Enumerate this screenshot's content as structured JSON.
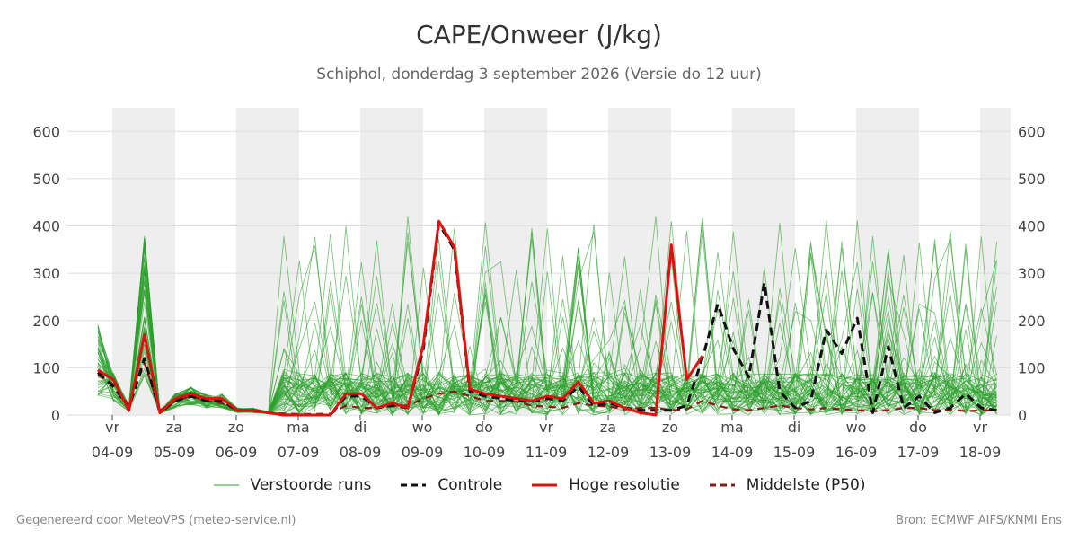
{
  "header": {
    "title": "CAPE/Onweer (J/kg)",
    "subtitle": "Schiphol, donderdag  3 september 2026 (Versie do 12 uur)"
  },
  "footer": {
    "left": "Gegenereerd door MeteoVPS (meteo-service.nl)",
    "right": "Bron: ECMWF AIFS/KNMI Ens"
  },
  "colors": {
    "ensemble": "#2ca02c",
    "control": "#111111",
    "highres": "#e01010",
    "median": "#8b1a1a",
    "weekend_band": "#eeeeee",
    "grid": "#dddddd"
  },
  "legend": [
    {
      "label": "Verstoorde runs",
      "key": "ensemble",
      "style": "thin"
    },
    {
      "label": "Controle",
      "key": "control",
      "style": "dashed"
    },
    {
      "label": "Hoge resolutie",
      "key": "highres",
      "style": "solid"
    },
    {
      "label": "Middelste (P50)",
      "key": "median",
      "style": "dashed"
    }
  ],
  "chart_data": {
    "type": "line",
    "ylim": [
      0,
      650
    ],
    "yticks": [
      0,
      100,
      200,
      300,
      400,
      500,
      600
    ],
    "x_start": "2026-09-03",
    "x_end": "2026-09-18",
    "day_ticks": [
      {
        "day": "vr",
        "date": "04-09"
      },
      {
        "day": "za",
        "date": "05-09"
      },
      {
        "day": "zo",
        "date": "06-09"
      },
      {
        "day": "ma",
        "date": "07-09"
      },
      {
        "day": "di",
        "date": "08-09"
      },
      {
        "day": "wo",
        "date": "09-09"
      },
      {
        "day": "do",
        "date": "10-09"
      },
      {
        "day": "vr",
        "date": "11-09"
      },
      {
        "day": "za",
        "date": "12-09"
      },
      {
        "day": "zo",
        "date": "13-09"
      },
      {
        "day": "ma",
        "date": "14-09"
      },
      {
        "day": "di",
        "date": "15-09"
      },
      {
        "day": "wo",
        "date": "16-09"
      },
      {
        "day": "do",
        "date": "17-09"
      },
      {
        "day": "vr",
        "date": "18-09"
      }
    ],
    "grid": true,
    "legend_position": "bottom",
    "series": [
      {
        "name": "Hoge resolutie",
        "x_days": [
          0,
          0.25,
          0.5,
          0.75,
          1,
          1.25,
          1.5,
          1.75,
          2,
          2.25,
          2.5,
          2.75,
          3,
          3.25,
          3.5,
          3.75,
          4,
          4.25,
          4.5,
          4.75,
          5,
          5.25,
          5.5,
          5.75,
          6,
          6.25,
          6.5,
          6.75,
          7,
          7.25,
          7.5,
          7.75,
          8,
          8.25,
          8.5,
          8.75,
          9,
          9.25,
          9.5,
          9.75,
          10
        ],
        "values": [
          95,
          75,
          10,
          170,
          5,
          35,
          45,
          35,
          35,
          10,
          10,
          5,
          0,
          0,
          0,
          0,
          45,
          45,
          15,
          25,
          15,
          150,
          410,
          355,
          55,
          45,
          40,
          35,
          30,
          40,
          35,
          70,
          25,
          30,
          15,
          5,
          0,
          360,
          75,
          125,
          null
        ]
      },
      {
        "name": "Controle",
        "x_days": [
          0,
          0.25,
          0.5,
          0.75,
          1,
          1.25,
          1.5,
          1.75,
          2,
          2.25,
          2.5,
          2.75,
          3,
          3.25,
          3.5,
          3.75,
          4,
          4.25,
          4.5,
          4.75,
          5,
          5.25,
          5.5,
          5.75,
          6,
          6.25,
          6.5,
          6.75,
          7,
          7.25,
          7.5,
          7.75,
          8,
          8.25,
          8.5,
          8.75,
          9,
          9.25,
          9.5,
          9.75,
          10,
          10.25,
          10.5,
          10.75,
          11,
          11.25,
          11.5,
          11.75,
          12,
          12.25,
          12.5,
          12.75,
          13,
          13.25,
          13.5,
          13.75,
          14,
          14.25,
          14.5
        ],
        "values": [
          90,
          60,
          15,
          120,
          5,
          30,
          40,
          30,
          30,
          10,
          10,
          5,
          0,
          0,
          0,
          0,
          40,
          40,
          15,
          20,
          15,
          140,
          405,
          350,
          50,
          40,
          35,
          30,
          28,
          35,
          30,
          60,
          20,
          25,
          15,
          10,
          10,
          10,
          20,
          120,
          235,
          140,
          80,
          280,
          50,
          15,
          30,
          180,
          130,
          205,
          5,
          145,
          15,
          40,
          5,
          15,
          45,
          15,
          10
        ]
      },
      {
        "name": "Middelste (P50)",
        "x_days": [
          0,
          0.25,
          0.5,
          0.75,
          1,
          1.25,
          1.5,
          1.75,
          2,
          2.25,
          2.5,
          2.75,
          3,
          3.25,
          3.5,
          3.75,
          4,
          4.25,
          4.5,
          4.75,
          5,
          5.25,
          5.5,
          5.75,
          6,
          6.25,
          6.5,
          6.75,
          7,
          7.25,
          7.5,
          7.75,
          8,
          8.25,
          8.5,
          8.75,
          9,
          9.25,
          9.5,
          9.75,
          10,
          10.25,
          10.5,
          10.75,
          11,
          11.25,
          11.5,
          11.75,
          12,
          12.25,
          12.5,
          12.75,
          13,
          13.25,
          13.5,
          13.75,
          14,
          14.25,
          14.5
        ],
        "values": [
          85,
          65,
          20,
          110,
          10,
          30,
          40,
          30,
          25,
          10,
          8,
          5,
          3,
          2,
          2,
          3,
          20,
          15,
          15,
          20,
          20,
          35,
          45,
          50,
          40,
          30,
          30,
          28,
          20,
          18,
          15,
          25,
          20,
          18,
          12,
          15,
          15,
          10,
          12,
          30,
          20,
          12,
          10,
          15,
          20,
          15,
          12,
          15,
          12,
          10,
          8,
          10,
          15,
          15,
          10,
          12,
          8,
          10,
          10
        ]
      }
    ]
  }
}
